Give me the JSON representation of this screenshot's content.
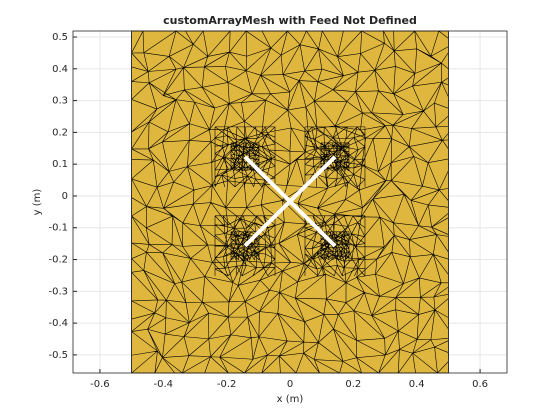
{
  "chart_data": {
    "type": "mesh",
    "title": "customArrayMesh with Feed Not Defined",
    "xlabel": "x (m)",
    "ylabel": "y (m)",
    "xlim": [
      -0.685,
      0.685
    ],
    "ylim": [
      -0.557,
      0.519
    ],
    "xticks": [
      -0.6,
      -0.4,
      -0.2,
      0,
      0.2,
      0.4,
      0.6
    ],
    "yticks": [
      -0.5,
      -0.4,
      -0.3,
      -0.2,
      -0.1,
      0,
      0.1,
      0.2,
      0.3,
      0.4,
      0.5
    ],
    "grid": true,
    "plate": {
      "x": [
        -0.5,
        0.5
      ],
      "y": [
        -0.557,
        0.519
      ],
      "color": "#dfb73f"
    },
    "slots": [
      {
        "x": [
          -0.142,
          0.142
        ],
        "y": [
          0.123,
          -0.157
        ]
      },
      {
        "x": [
          0.142,
          -0.142
        ],
        "y": [
          0.123,
          -0.157
        ]
      }
    ],
    "slot_color": "#ffffff"
  }
}
